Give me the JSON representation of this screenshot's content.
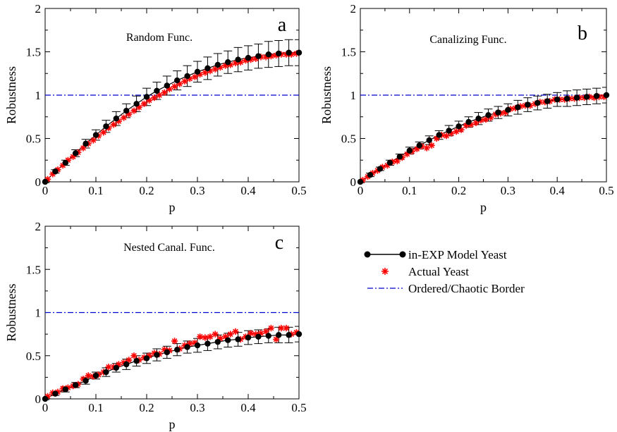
{
  "chart_data": [
    {
      "panel": "a",
      "type": "line",
      "title": "Random Func.",
      "panel_letter": "a",
      "xlabel": "p",
      "ylabel": "Robustness",
      "xlim": [
        0,
        0.5
      ],
      "ylim": [
        0,
        2
      ],
      "xticks": [
        "0",
        "0.1",
        "0.2",
        "0.3",
        "0.4",
        "0.5"
      ],
      "yticks": [
        "0",
        "0.5",
        "1",
        "1.5",
        "2"
      ],
      "reference_line": 1,
      "series": [
        {
          "name": "in-EXP Model Yeast",
          "x": [
            0,
            0.02,
            0.04,
            0.06,
            0.08,
            0.1,
            0.12,
            0.14,
            0.16,
            0.18,
            0.2,
            0.22,
            0.24,
            0.26,
            0.28,
            0.3,
            0.32,
            0.34,
            0.36,
            0.38,
            0.4,
            0.42,
            0.44,
            0.46,
            0.48,
            0.5
          ],
          "y": [
            0,
            0.12,
            0.22,
            0.33,
            0.44,
            0.54,
            0.64,
            0.73,
            0.82,
            0.9,
            0.98,
            1.05,
            1.11,
            1.17,
            1.22,
            1.27,
            1.31,
            1.35,
            1.38,
            1.41,
            1.43,
            1.45,
            1.47,
            1.48,
            1.49,
            1.49
          ],
          "err": [
            0.01,
            0.02,
            0.03,
            0.04,
            0.05,
            0.06,
            0.07,
            0.08,
            0.08,
            0.09,
            0.1,
            0.1,
            0.11,
            0.11,
            0.12,
            0.12,
            0.13,
            0.13,
            0.13,
            0.14,
            0.14,
            0.14,
            0.15,
            0.15,
            0.15,
            0.15
          ]
        },
        {
          "name": "Actual Yeast",
          "x": [
            0.005,
            0.015,
            0.025,
            0.035,
            0.045,
            0.055,
            0.065,
            0.075,
            0.085,
            0.095,
            0.105,
            0.115,
            0.125,
            0.135,
            0.145,
            0.155,
            0.165,
            0.175,
            0.185,
            0.195,
            0.205,
            0.215,
            0.225,
            0.235,
            0.245,
            0.255,
            0.265,
            0.275,
            0.285,
            0.295,
            0.305,
            0.315,
            0.325,
            0.335,
            0.345,
            0.355,
            0.365,
            0.375,
            0.385,
            0.395,
            0.405,
            0.415,
            0.425,
            0.435,
            0.445,
            0.455,
            0.465,
            0.475,
            0.485,
            0.495
          ],
          "y": [
            0.03,
            0.09,
            0.14,
            0.19,
            0.25,
            0.29,
            0.34,
            0.39,
            0.44,
            0.48,
            0.53,
            0.57,
            0.62,
            0.66,
            0.7,
            0.74,
            0.78,
            0.82,
            0.86,
            0.9,
            0.94,
            0.97,
            1.0,
            1.03,
            1.07,
            1.1,
            1.13,
            1.16,
            1.19,
            1.21,
            1.24,
            1.26,
            1.28,
            1.3,
            1.32,
            1.34,
            1.35,
            1.37,
            1.38,
            1.4,
            1.41,
            1.42,
            1.44,
            1.44,
            1.45,
            1.46,
            1.47,
            1.47,
            1.47,
            1.48
          ]
        }
      ]
    },
    {
      "panel": "b",
      "type": "line",
      "title": "Canalizing Func.",
      "panel_letter": "b",
      "xlabel": "p",
      "ylabel": "Robustness",
      "xlim": [
        0,
        0.5
      ],
      "ylim": [
        0,
        2
      ],
      "xticks": [
        "0",
        "0.1",
        "0.2",
        "0.3",
        "0.4",
        "0.5"
      ],
      "yticks": [
        "0",
        "0.5",
        "1",
        "1.5",
        "2"
      ],
      "reference_line": 1,
      "series": [
        {
          "name": "in-EXP Model Yeast",
          "x": [
            0,
            0.02,
            0.04,
            0.06,
            0.08,
            0.1,
            0.12,
            0.14,
            0.16,
            0.18,
            0.2,
            0.22,
            0.24,
            0.26,
            0.28,
            0.3,
            0.32,
            0.34,
            0.36,
            0.38,
            0.4,
            0.42,
            0.44,
            0.46,
            0.48,
            0.5
          ],
          "y": [
            0,
            0.08,
            0.15,
            0.22,
            0.29,
            0.36,
            0.42,
            0.48,
            0.54,
            0.59,
            0.64,
            0.69,
            0.73,
            0.77,
            0.8,
            0.83,
            0.86,
            0.89,
            0.91,
            0.93,
            0.95,
            0.96,
            0.97,
            0.98,
            0.99,
            1.0
          ],
          "err": [
            0.01,
            0.02,
            0.02,
            0.03,
            0.03,
            0.04,
            0.04,
            0.05,
            0.05,
            0.06,
            0.06,
            0.06,
            0.07,
            0.07,
            0.07,
            0.07,
            0.08,
            0.08,
            0.08,
            0.08,
            0.08,
            0.09,
            0.09,
            0.09,
            0.09,
            0.09
          ]
        },
        {
          "name": "Actual Yeast",
          "x": [
            0.005,
            0.015,
            0.025,
            0.035,
            0.045,
            0.055,
            0.065,
            0.075,
            0.085,
            0.095,
            0.105,
            0.115,
            0.125,
            0.135,
            0.145,
            0.155,
            0.165,
            0.175,
            0.185,
            0.195,
            0.205,
            0.215,
            0.225,
            0.235,
            0.245,
            0.255,
            0.265,
            0.275,
            0.285,
            0.295,
            0.305,
            0.315,
            0.325,
            0.335,
            0.345,
            0.355,
            0.365,
            0.375,
            0.385,
            0.395,
            0.405,
            0.415,
            0.425,
            0.435,
            0.445,
            0.455,
            0.465,
            0.475,
            0.485,
            0.495
          ],
          "y": [
            0.02,
            0.06,
            0.1,
            0.13,
            0.17,
            0.19,
            0.23,
            0.24,
            0.28,
            0.32,
            0.35,
            0.38,
            0.41,
            0.39,
            0.42,
            0.5,
            0.54,
            0.53,
            0.56,
            0.58,
            0.6,
            0.65,
            0.66,
            0.68,
            0.71,
            0.72,
            0.74,
            0.78,
            0.79,
            0.8,
            0.84,
            0.85,
            0.87,
            0.88,
            0.88,
            0.9,
            0.92,
            0.92,
            0.93,
            0.95,
            0.95,
            0.95,
            0.96,
            0.96,
            0.97,
            0.97,
            0.98,
            0.97,
            0.98,
            0.98
          ]
        }
      ]
    },
    {
      "panel": "c",
      "type": "line",
      "title": "Nested Canal. Func.",
      "panel_letter": "c",
      "xlabel": "p",
      "ylabel": "Robustness",
      "xlim": [
        0,
        0.5
      ],
      "ylim": [
        0,
        2
      ],
      "xticks": [
        "0",
        "0.1",
        "0.2",
        "0.3",
        "0.4",
        "0.5"
      ],
      "yticks": [
        "0",
        "0.5",
        "1",
        "1.5",
        "2"
      ],
      "reference_line": 1,
      "series": [
        {
          "name": "in-EXP Model Yeast",
          "x": [
            0,
            0.02,
            0.04,
            0.06,
            0.08,
            0.1,
            0.12,
            0.14,
            0.16,
            0.18,
            0.2,
            0.22,
            0.24,
            0.26,
            0.28,
            0.3,
            0.32,
            0.34,
            0.36,
            0.38,
            0.4,
            0.42,
            0.44,
            0.46,
            0.48,
            0.5
          ],
          "y": [
            0,
            0.06,
            0.11,
            0.16,
            0.21,
            0.27,
            0.31,
            0.36,
            0.4,
            0.44,
            0.47,
            0.51,
            0.54,
            0.57,
            0.6,
            0.62,
            0.64,
            0.66,
            0.68,
            0.69,
            0.71,
            0.72,
            0.73,
            0.74,
            0.74,
            0.75
          ],
          "err": [
            0.01,
            0.02,
            0.03,
            0.03,
            0.04,
            0.04,
            0.05,
            0.05,
            0.06,
            0.06,
            0.06,
            0.07,
            0.07,
            0.07,
            0.07,
            0.08,
            0.08,
            0.08,
            0.08,
            0.08,
            0.08,
            0.08,
            0.08,
            0.09,
            0.09,
            0.09
          ]
        },
        {
          "name": "Actual Yeast",
          "x": [
            0.005,
            0.015,
            0.025,
            0.035,
            0.045,
            0.055,
            0.065,
            0.075,
            0.085,
            0.095,
            0.105,
            0.115,
            0.125,
            0.135,
            0.145,
            0.155,
            0.165,
            0.175,
            0.185,
            0.195,
            0.205,
            0.215,
            0.225,
            0.235,
            0.245,
            0.255,
            0.265,
            0.275,
            0.285,
            0.295,
            0.305,
            0.315,
            0.325,
            0.335,
            0.345,
            0.355,
            0.365,
            0.375,
            0.385,
            0.395,
            0.405,
            0.415,
            0.425,
            0.435,
            0.445,
            0.455,
            0.465,
            0.475,
            0.485,
            0.495
          ],
          "y": [
            0.03,
            0.07,
            0.08,
            0.12,
            0.13,
            0.15,
            0.17,
            0.23,
            0.27,
            0.26,
            0.28,
            0.31,
            0.37,
            0.37,
            0.4,
            0.42,
            0.45,
            0.5,
            0.45,
            0.48,
            0.5,
            0.53,
            0.52,
            0.57,
            0.56,
            0.67,
            0.58,
            0.62,
            0.64,
            0.65,
            0.72,
            0.71,
            0.72,
            0.75,
            0.7,
            0.72,
            0.75,
            0.78,
            0.69,
            0.72,
            0.76,
            0.75,
            0.76,
            0.78,
            0.82,
            0.69,
            0.82,
            0.82,
            0.75,
            0.77
          ]
        }
      ]
    }
  ],
  "legend": {
    "items": [
      {
        "label": "in-EXP Model Yeast",
        "kind": "line-dot"
      },
      {
        "label": "Actual Yeast",
        "kind": "star"
      },
      {
        "label": "Ordered/Chaotic Border",
        "kind": "dashdot"
      }
    ]
  },
  "colors": {
    "model": "#000000",
    "actual": "#ff0000",
    "border": "#0000cc",
    "axes": "#000000"
  }
}
